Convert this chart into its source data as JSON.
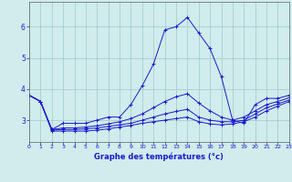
{
  "xlabel": "Graphe des températures (°c)",
  "background_color": "#d0ecec",
  "line_color": "#1a1acc",
  "grid_color": "#a0c8c8",
  "x_values": [
    0,
    1,
    2,
    3,
    4,
    5,
    6,
    7,
    8,
    9,
    10,
    11,
    12,
    13,
    14,
    15,
    16,
    17,
    18,
    19,
    20,
    21,
    22,
    23
  ],
  "series": [
    [
      3.8,
      3.6,
      2.7,
      2.9,
      2.9,
      2.9,
      3.0,
      3.1,
      3.1,
      3.5,
      4.1,
      4.8,
      5.9,
      6.0,
      6.3,
      5.8,
      5.3,
      4.4,
      3.0,
      2.9,
      3.5,
      3.7,
      3.7,
      3.8
    ],
    [
      3.8,
      3.6,
      2.7,
      2.75,
      2.75,
      2.78,
      2.82,
      2.88,
      2.95,
      3.05,
      3.2,
      3.4,
      3.6,
      3.75,
      3.85,
      3.55,
      3.3,
      3.1,
      3.0,
      3.1,
      3.3,
      3.5,
      3.6,
      3.72
    ],
    [
      3.8,
      3.6,
      2.68,
      2.7,
      2.7,
      2.72,
      2.75,
      2.8,
      2.85,
      2.9,
      3.0,
      3.1,
      3.2,
      3.28,
      3.35,
      3.1,
      3.0,
      2.95,
      2.95,
      3.0,
      3.2,
      3.4,
      3.52,
      3.65
    ],
    [
      3.8,
      3.6,
      2.65,
      2.65,
      2.65,
      2.65,
      2.68,
      2.72,
      2.78,
      2.83,
      2.9,
      2.95,
      3.0,
      3.05,
      3.1,
      2.95,
      2.88,
      2.85,
      2.88,
      2.95,
      3.1,
      3.3,
      3.45,
      3.6
    ]
  ],
  "ylim": [
    2.3,
    6.8
  ],
  "xlim": [
    0,
    23
  ],
  "yticks": [
    3,
    4,
    5,
    6
  ],
  "xticks": [
    0,
    1,
    2,
    3,
    4,
    5,
    6,
    7,
    8,
    9,
    10,
    11,
    12,
    13,
    14,
    15,
    16,
    17,
    18,
    19,
    20,
    21,
    22,
    23
  ]
}
